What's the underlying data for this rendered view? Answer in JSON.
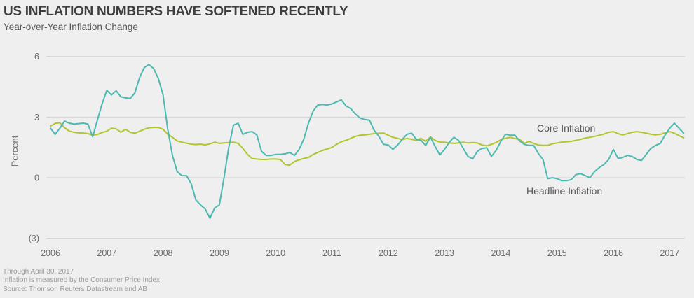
{
  "header": {
    "title": "US INFLATION NUMBERS HAVE SOFTENED RECENTLY",
    "subtitle": "Year-over-Year Inflation Change"
  },
  "footnotes": {
    "line1": "Through April 30, 2017",
    "line2": "Inflation is measured by the Consumer Price Index.",
    "line3": "Source: Thomson Reuters Datastream and AB"
  },
  "colors": {
    "background": "#efefef",
    "core_line": "#b3c42f",
    "headline_line": "#4db9b0",
    "gridline": "#d2d2d3",
    "tick_label": "#6a6b6d"
  },
  "chart_data": {
    "type": "line",
    "title": "US INFLATION NUMBERS HAVE SOFTENED RECENTLY",
    "subtitle": "Year-over-Year Inflation Change",
    "ylabel": "Percent",
    "xlabel": "",
    "grid": "horizontal",
    "ylim": [
      -3,
      6
    ],
    "x_start": "2006-01",
    "x_end": "2017-04",
    "x_frequency": "monthly",
    "x_tick_labels": [
      "2006",
      "2007",
      "2008",
      "2009",
      "2010",
      "2011",
      "2012",
      "2013",
      "2014",
      "2015",
      "2016",
      "2017"
    ],
    "y_ticks": [
      {
        "value": 6,
        "label": "6"
      },
      {
        "value": 3,
        "label": "3"
      },
      {
        "value": 0,
        "label": "0"
      },
      {
        "value": -3,
        "label": "(3)"
      }
    ],
    "legend": {
      "position": "inline-right",
      "core_label": "Core Inflation",
      "headline_label": "Headline Inflation"
    },
    "series": [
      {
        "name": "Core Inflation",
        "color": "#b3c42f",
        "values": [
          2.55,
          2.69,
          2.72,
          2.48,
          2.31,
          2.25,
          2.22,
          2.21,
          2.18,
          2.1,
          2.14,
          2.24,
          2.3,
          2.45,
          2.42,
          2.25,
          2.4,
          2.25,
          2.2,
          2.3,
          2.4,
          2.47,
          2.49,
          2.49,
          2.4,
          2.15,
          2.0,
          1.82,
          1.76,
          1.71,
          1.66,
          1.64,
          1.66,
          1.62,
          1.68,
          1.76,
          1.7,
          1.72,
          1.74,
          1.76,
          1.7,
          1.45,
          1.15,
          0.95,
          0.92,
          0.9,
          0.9,
          0.92,
          0.92,
          0.9,
          0.65,
          0.62,
          0.8,
          0.88,
          0.95,
          1.0,
          1.15,
          1.25,
          1.35,
          1.42,
          1.5,
          1.65,
          1.78,
          1.85,
          1.95,
          2.05,
          2.1,
          2.12,
          2.15,
          2.18,
          2.2,
          2.21,
          2.1,
          2.0,
          1.95,
          1.88,
          1.95,
          1.9,
          1.85,
          1.95,
          1.8,
          2.02,
          1.85,
          1.76,
          1.76,
          1.72,
          1.7,
          1.72,
          1.76,
          1.72,
          1.74,
          1.72,
          1.62,
          1.58,
          1.65,
          1.74,
          1.88,
          1.95,
          2.0,
          1.94,
          1.9,
          1.7,
          1.8,
          1.7,
          1.62,
          1.6,
          1.6,
          1.68,
          1.72,
          1.76,
          1.78,
          1.8,
          1.85,
          1.9,
          1.96,
          2.0,
          2.05,
          2.1,
          2.16,
          2.25,
          2.28,
          2.18,
          2.12,
          2.18,
          2.25,
          2.28,
          2.25,
          2.2,
          2.15,
          2.12,
          2.15,
          2.22,
          2.28,
          2.2,
          2.08,
          1.98
        ]
      },
      {
        "name": "Headline Inflation",
        "color": "#4db9b0",
        "values": [
          2.45,
          2.15,
          2.45,
          2.8,
          2.7,
          2.65,
          2.68,
          2.7,
          2.65,
          2.03,
          2.85,
          3.65,
          4.32,
          4.1,
          4.3,
          4.0,
          3.95,
          3.92,
          4.2,
          4.95,
          5.45,
          5.6,
          5.4,
          4.9,
          4.1,
          2.4,
          1.1,
          0.3,
          0.1,
          0.1,
          -0.3,
          -1.1,
          -1.35,
          -1.55,
          -2.0,
          -1.5,
          -1.35,
          0.0,
          1.5,
          2.6,
          2.7,
          2.15,
          2.25,
          2.28,
          2.12,
          1.3,
          1.1,
          1.1,
          1.15,
          1.15,
          1.18,
          1.25,
          1.1,
          1.4,
          1.9,
          2.7,
          3.3,
          3.6,
          3.62,
          3.6,
          3.65,
          3.75,
          3.85,
          3.55,
          3.42,
          3.15,
          2.95,
          2.88,
          2.85,
          2.35,
          2.05,
          1.65,
          1.62,
          1.4,
          1.62,
          1.9,
          2.15,
          2.2,
          1.9,
          1.85,
          1.6,
          2.0,
          1.55,
          1.12,
          1.4,
          1.75,
          2.0,
          1.85,
          1.45,
          1.05,
          0.93,
          1.3,
          1.45,
          1.48,
          1.05,
          1.35,
          1.8,
          2.15,
          2.1,
          2.1,
          1.82,
          1.65,
          1.6,
          1.6,
          1.2,
          0.9,
          -0.05,
          0.0,
          -0.05,
          -0.15,
          -0.15,
          -0.1,
          0.15,
          0.2,
          0.1,
          0.0,
          0.3,
          0.5,
          0.65,
          0.9,
          1.4,
          0.95,
          1.0,
          1.1,
          1.05,
          0.9,
          0.85,
          1.15,
          1.45,
          1.6,
          1.7,
          2.1,
          2.45,
          2.7,
          2.45,
          2.2
        ]
      }
    ]
  }
}
